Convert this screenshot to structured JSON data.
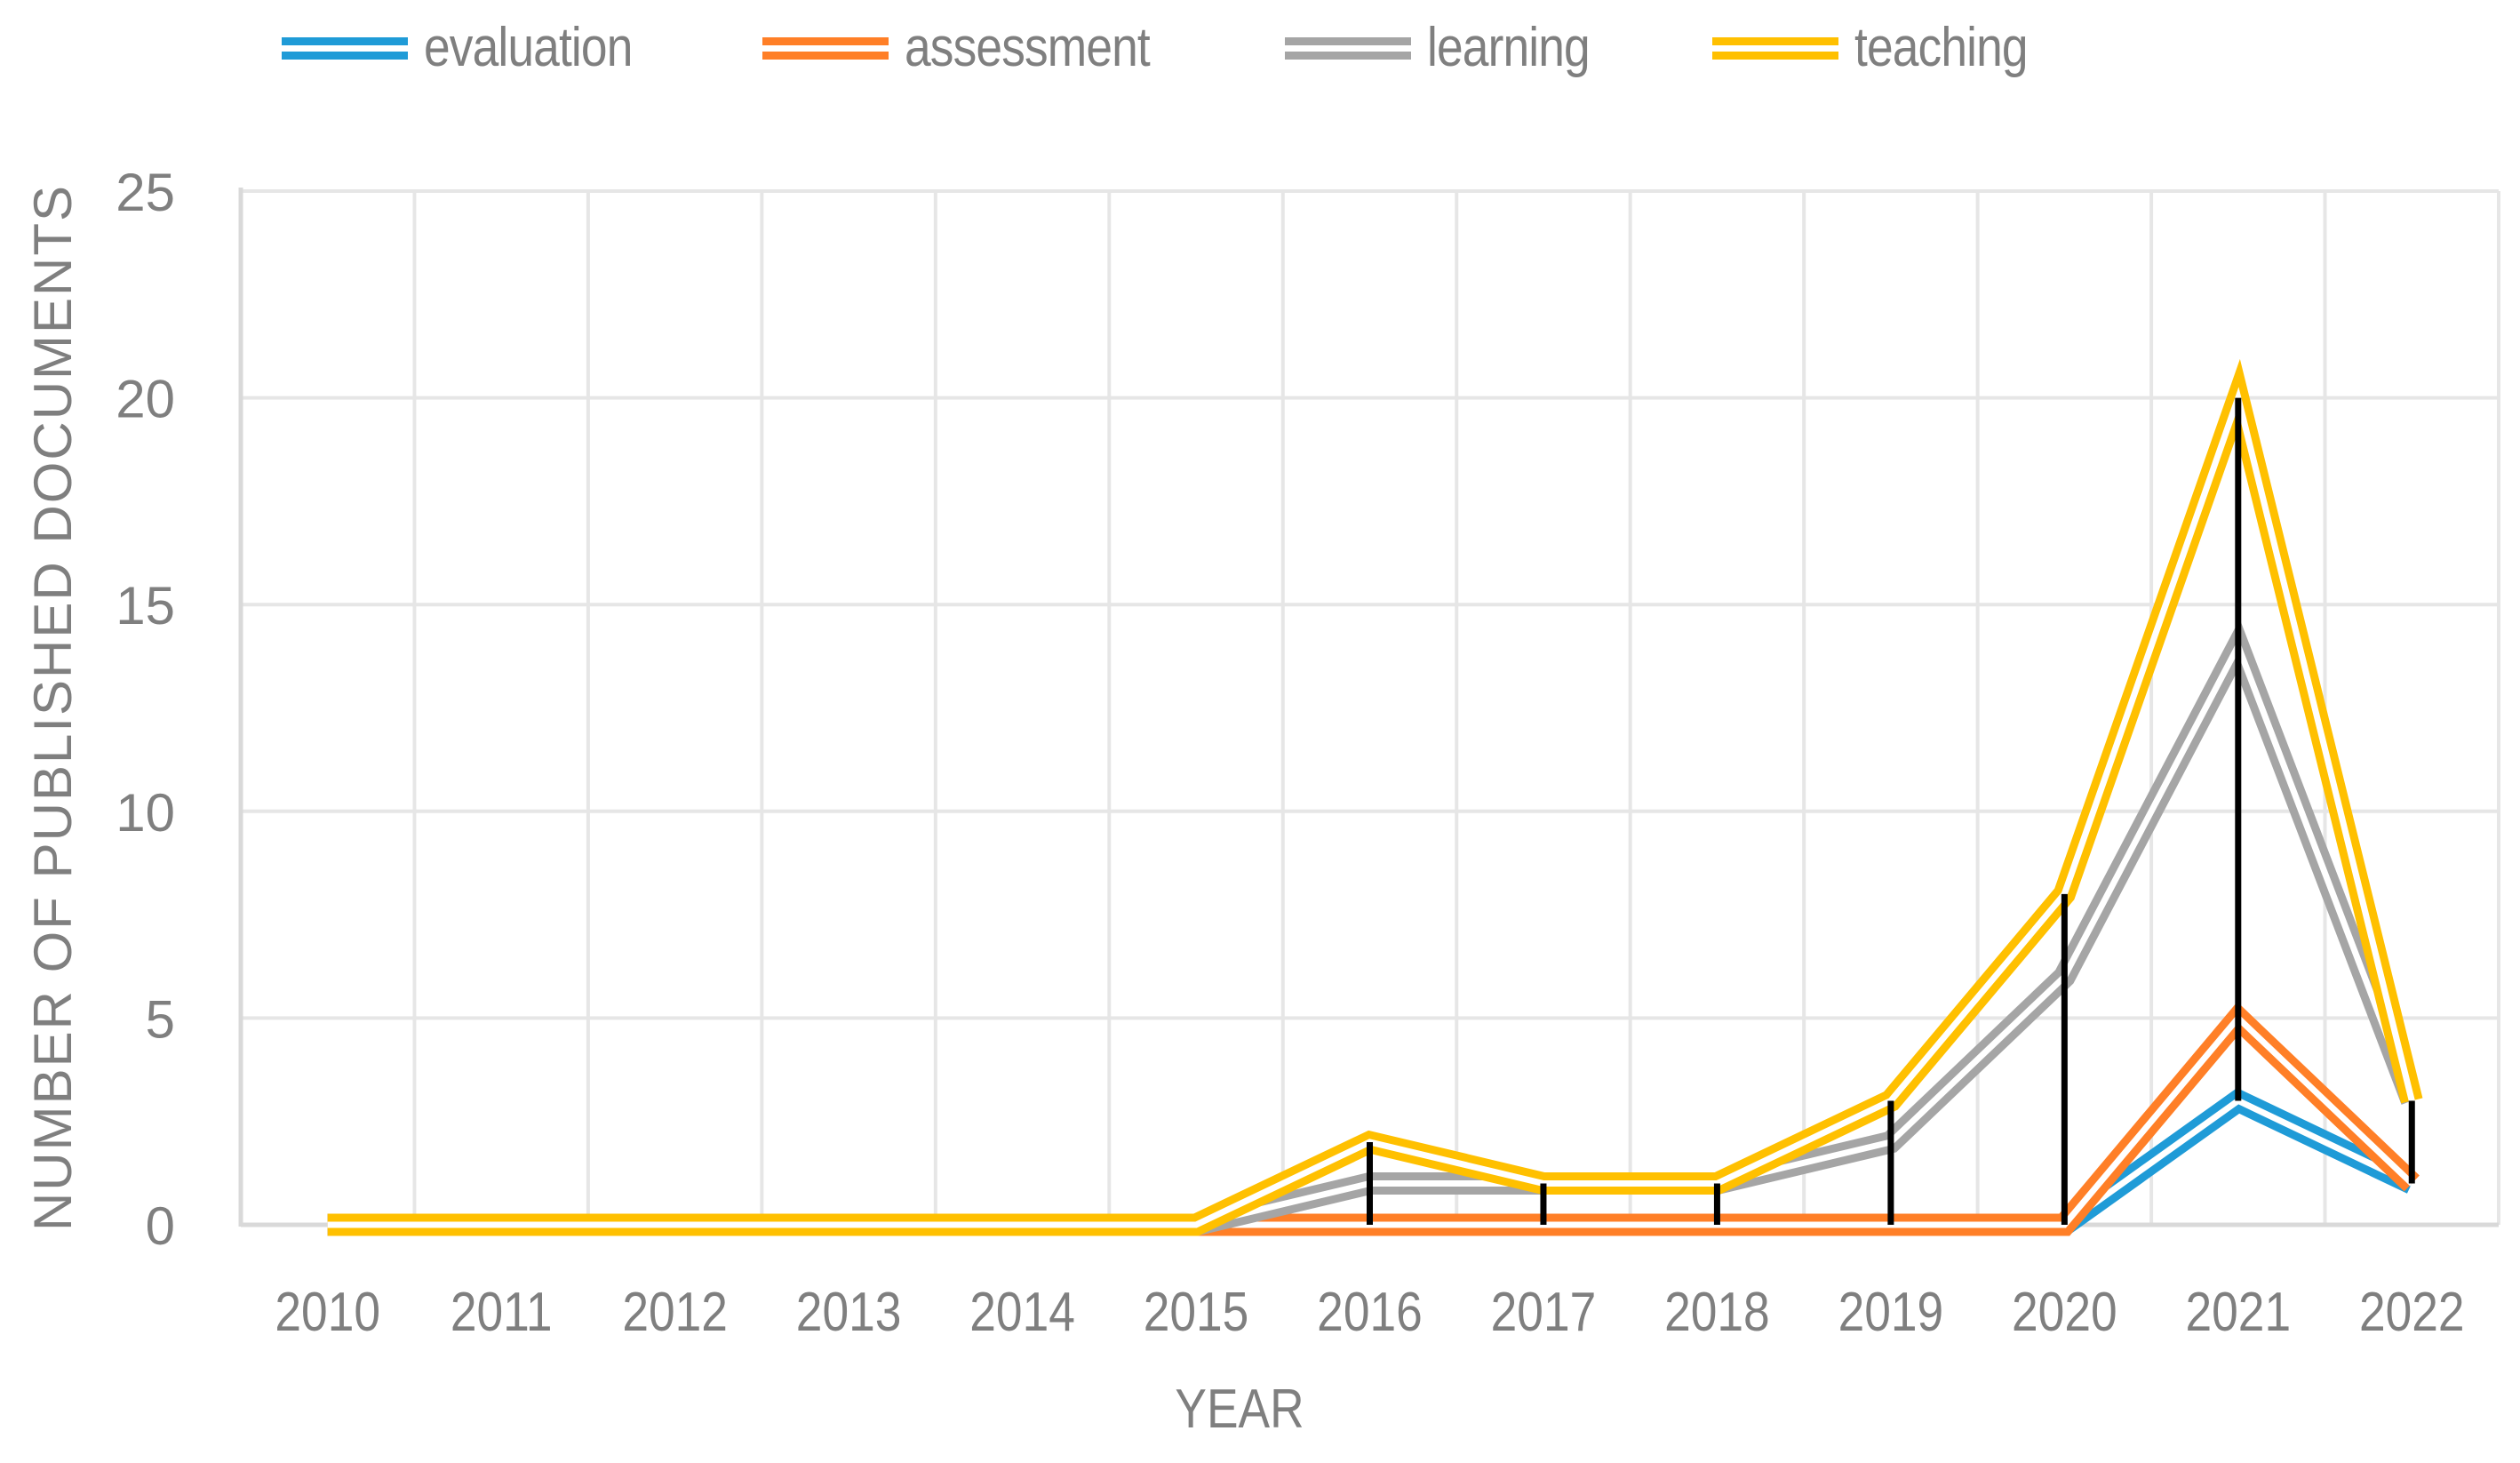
{
  "chart_data": {
    "type": "line",
    "title": "",
    "xlabel": "YEAR",
    "ylabel": "NUMBER OF PUBLISHED DOCUMENTS",
    "ylim": [
      0,
      25
    ],
    "yticks": [
      0,
      5,
      10,
      15,
      20,
      25
    ],
    "grid": true,
    "legend_position": "top",
    "drop_lines": true,
    "categories": [
      "2010",
      "2011",
      "2012",
      "2013",
      "2014",
      "2015",
      "2016",
      "2017",
      "2018",
      "2019",
      "2020",
      "2021",
      "2022"
    ],
    "series": [
      {
        "name": "evaluation",
        "color": "#1f9bd7",
        "values": [
          0,
          0,
          0,
          0,
          0,
          0,
          0,
          0,
          0,
          0,
          0,
          3,
          1
        ]
      },
      {
        "name": "assessment",
        "color": "#ff7f27",
        "values": [
          0,
          0,
          0,
          0,
          0,
          0,
          0,
          0,
          0,
          0,
          0,
          5,
          1
        ]
      },
      {
        "name": "learning",
        "color": "#a5a5a5",
        "values": [
          0,
          0,
          0,
          0,
          0,
          0,
          1,
          1,
          1,
          2,
          6,
          14,
          3
        ]
      },
      {
        "name": "teaching",
        "color": "#ffc000",
        "values": [
          0,
          0,
          0,
          0,
          0,
          0,
          2,
          1,
          1,
          3,
          8,
          20,
          3
        ]
      }
    ]
  },
  "legend": {
    "items": [
      {
        "label": "evaluation",
        "color": "#1f9bd7"
      },
      {
        "label": "assessment",
        "color": "#ff7f27"
      },
      {
        "label": "learning",
        "color": "#a5a5a5"
      },
      {
        "label": "teaching",
        "color": "#ffc000"
      }
    ]
  },
  "axes": {
    "x_title": "YEAR",
    "y_title": "NUMBER OF PUBLISHED DOCUMENTS"
  },
  "colors": {
    "text": "#7f7f7f",
    "grid": "#e6e6e6",
    "axis": "#d9d9d9",
    "drop_line": "#000000"
  }
}
